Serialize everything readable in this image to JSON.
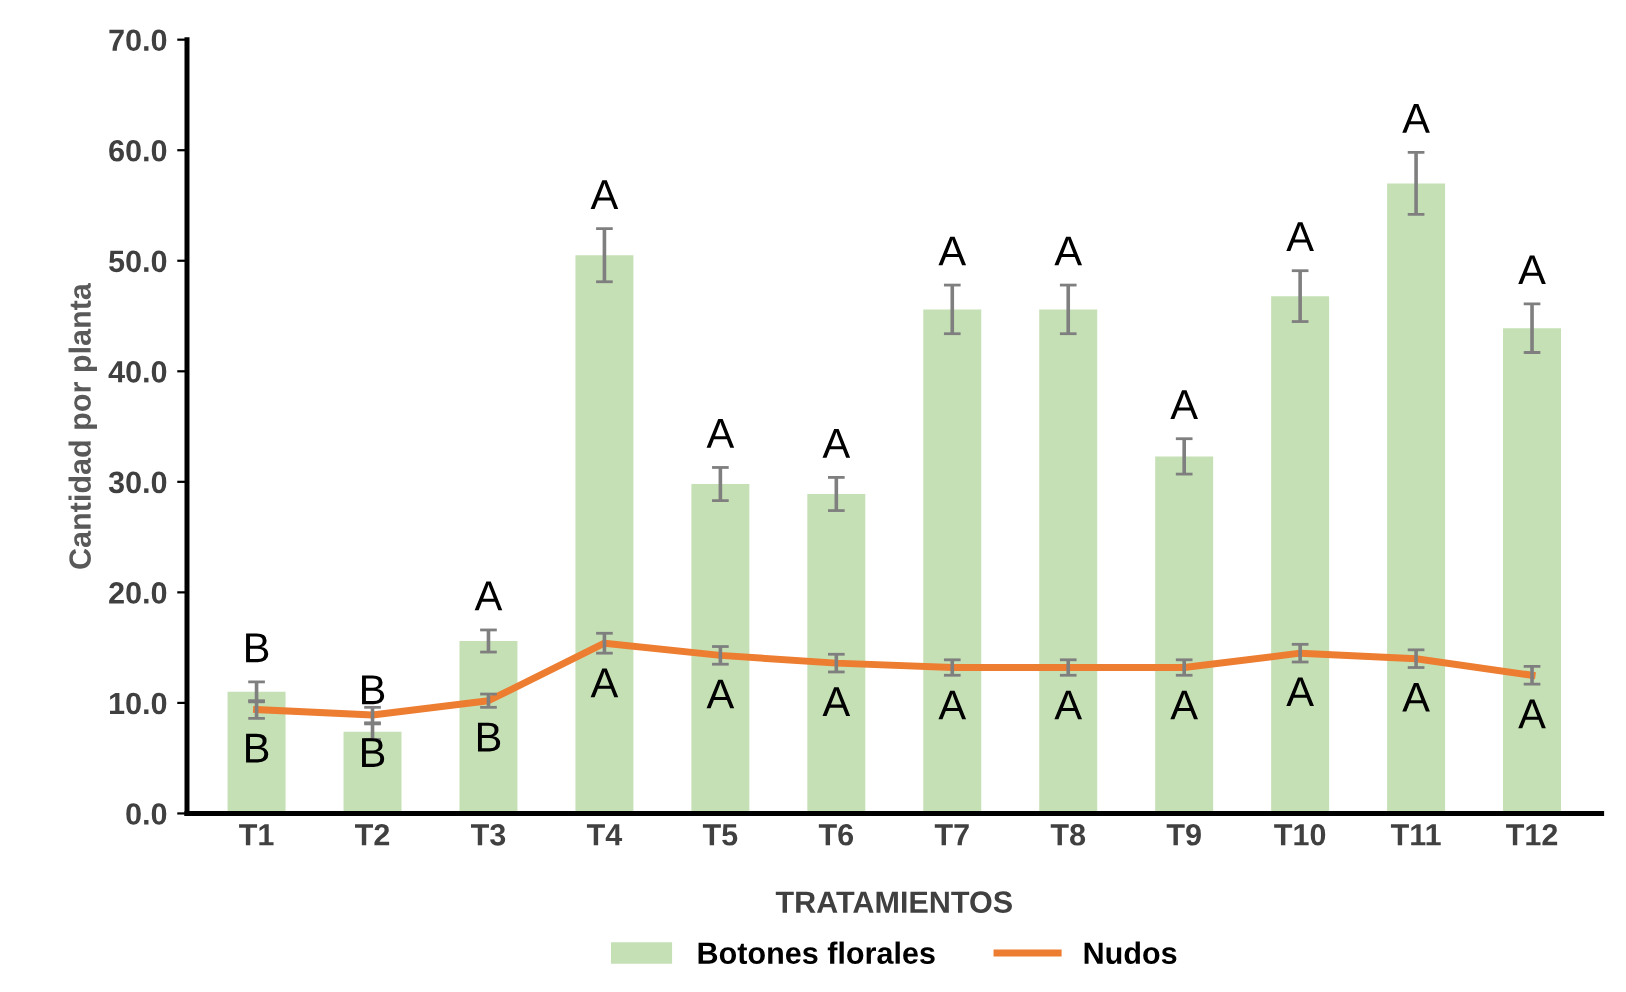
{
  "chart_data": {
    "type": "bar",
    "categories": [
      "T1",
      "T2",
      "T3",
      "T4",
      "T5",
      "T6",
      "T7",
      "T8",
      "T9",
      "T10",
      "T11",
      "T12"
    ],
    "xlabel": "TRATAMIENTOS",
    "ylabel": "Cantidad por planta",
    "series": [
      {
        "name": "Botones florales",
        "color": "#c5e0b4",
        "values": [
          11.0,
          7.4,
          15.6,
          50.5,
          29.8,
          28.9,
          45.6,
          45.6,
          32.3,
          46.8,
          57.0,
          43.9
        ],
        "errors": [
          0.9,
          0.7,
          1.0,
          2.4,
          1.5,
          1.5,
          2.2,
          2.2,
          1.6,
          2.3,
          2.8,
          2.2
        ],
        "value_labels": [
          "B",
          "B",
          "A",
          "A",
          "A",
          "A",
          "A",
          "A",
          "A",
          "A",
          "A",
          "A"
        ]
      },
      {
        "name": "Nudos",
        "type": "line",
        "color": "#ed7d31",
        "values": [
          9.4,
          8.9,
          10.2,
          15.4,
          14.3,
          13.6,
          13.2,
          13.2,
          13.2,
          14.5,
          14.0,
          12.5
        ],
        "errors": [
          0.8,
          0.7,
          0.6,
          0.9,
          0.8,
          0.8,
          0.7,
          0.7,
          0.7,
          0.8,
          0.8,
          0.8
        ],
        "value_labels": [
          "B",
          "B",
          "B",
          "A",
          "A",
          "A",
          "A",
          "A",
          "A",
          "A",
          "A",
          "A"
        ]
      }
    ],
    "ylim": [
      0,
      70
    ],
    "yticks": [
      {
        "value": 0,
        "label": "0.0"
      },
      {
        "value": 10,
        "label": "10.0"
      },
      {
        "value": 20,
        "label": "20.0"
      },
      {
        "value": 30,
        "label": "30.0"
      },
      {
        "value": 40,
        "label": "40.0"
      },
      {
        "value": 50,
        "label": "50.0"
      },
      {
        "value": 60,
        "label": "60.0"
      },
      {
        "value": 70,
        "label": "70.0"
      }
    ],
    "legend": "bottom",
    "line_style": "solid"
  }
}
